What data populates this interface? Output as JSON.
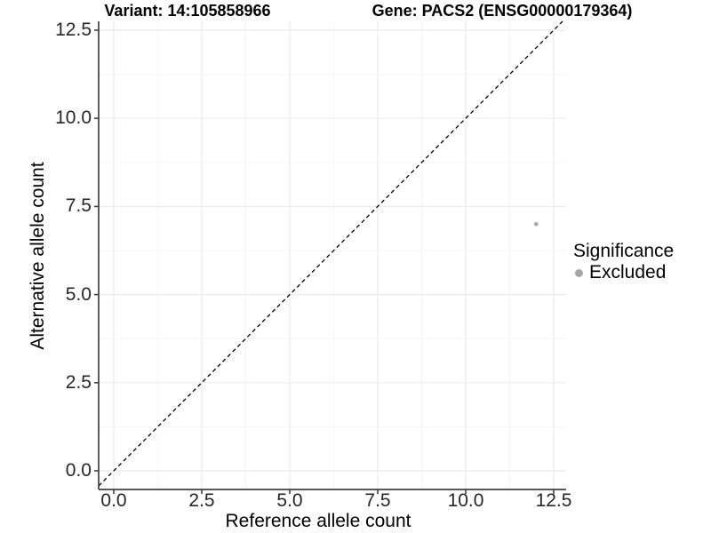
{
  "chart_data": {
    "type": "scatter",
    "titles": {
      "left": "Variant: 14:105858966",
      "right": "Gene: PACS2 (ENSG00000179364)"
    },
    "xlabel": "Reference allele count",
    "ylabel": "Alternative allele count",
    "x_ticks": {
      "labels": [
        "0.0",
        "2.5",
        "5.0",
        "7.5",
        "10.0",
        "12.5"
      ],
      "values": [
        0,
        2.5,
        5,
        7.5,
        10,
        12.5
      ]
    },
    "y_ticks": {
      "labels": [
        "0.0",
        "2.5",
        "5.0",
        "7.5",
        "10.0",
        "12.5"
      ],
      "values": [
        0,
        2.5,
        5,
        7.5,
        10,
        12.5
      ]
    },
    "minor_tick_values": [
      1.25,
      3.75,
      6.25,
      8.75,
      11.25
    ],
    "xlim": [
      -0.43,
      12.85
    ],
    "ylim": [
      -0.53,
      12.75
    ],
    "grid": "major+minor",
    "series": [
      {
        "name": "Excluded",
        "color": "#a6a6a6",
        "points": [
          {
            "x": 12,
            "y": 7
          }
        ]
      }
    ],
    "reference_line": {
      "type": "identity y=x",
      "style": "dashed",
      "color": "#000000"
    },
    "legend": {
      "title": "Significance",
      "position": "right",
      "entries": [
        {
          "label": "Excluded",
          "color": "#a6a6a6"
        }
      ]
    }
  },
  "colors": {
    "background": "#ffffff",
    "axis": "#404040",
    "tick_mark": "#404040",
    "grid_major": "#ebebeb",
    "grid_minor": "#f5f5f5",
    "tick_label": "#262626",
    "point": "#a6a6a6"
  }
}
